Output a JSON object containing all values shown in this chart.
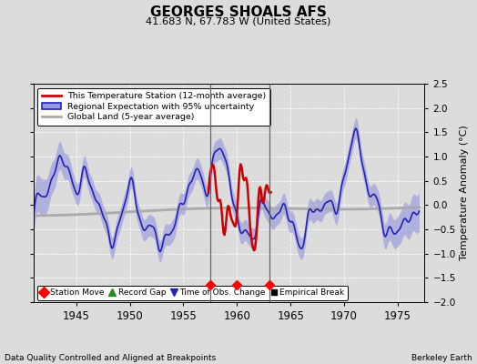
{
  "title": "GEORGES SHOALS AFS",
  "subtitle": "41.683 N, 67.783 W (United States)",
  "xlabel_bottom": "Data Quality Controlled and Aligned at Breakpoints",
  "xlabel_right": "Berkeley Earth",
  "ylabel": "Temperature Anomaly (°C)",
  "xlim": [
    1941.0,
    1977.5
  ],
  "ylim": [
    -2.0,
    2.5
  ],
  "yticks": [
    -2,
    -1.5,
    -1,
    -0.5,
    0,
    0.5,
    1,
    1.5,
    2,
    2.5
  ],
  "xticks": [
    1945,
    1950,
    1955,
    1960,
    1965,
    1970,
    1975
  ],
  "bg_color": "#dcdcdc",
  "plot_bg_color": "#dcdcdc",
  "station_move_years": [
    1957.5,
    1960.0,
    1963.0
  ],
  "breakline_years": [
    1957.5,
    1963.0
  ],
  "regional_color": "#2222bb",
  "regional_fill_color": "#9999dd",
  "station_color": "#cc0000",
  "global_color": "#aaaaaa",
  "legend_station": "This Temperature Station (12-month average)",
  "legend_regional": "Regional Expectation with 95% uncertainty",
  "legend_global": "Global Land (5-year average)",
  "marker_legend": [
    "Station Move",
    "Record Gap",
    "Time of Obs. Change",
    "Empirical Break"
  ]
}
